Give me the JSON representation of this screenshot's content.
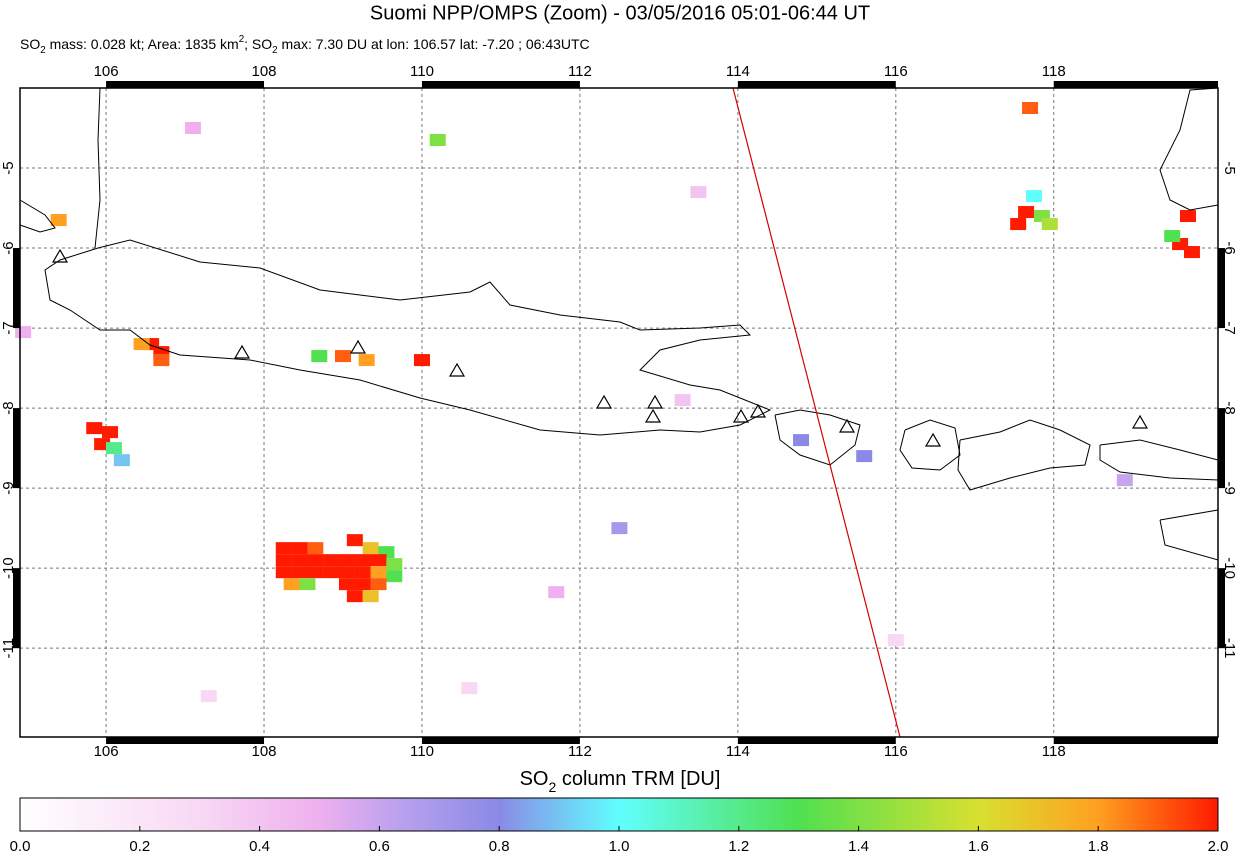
{
  "chart_data": {
    "type": "map",
    "title": "Suomi NPP/OMPS (Zoom) - 03/05/2016 05:01-06:44 UT",
    "subtitle": [
      {
        "text": "SO"
      },
      {
        "text": "2",
        "script": "sub"
      },
      {
        "text": " mass: 0.028 kt; Area: 1835 km"
      },
      {
        "text": "2",
        "script": "sup"
      },
      {
        "text": "; SO"
      },
      {
        "text": "2",
        "script": "sub"
      },
      {
        "text": " max: 7.30 DU at lon: 106.57 lat: -7.20 ; 06:43UTC"
      }
    ],
    "xlim": [
      104.91,
      120.08
    ],
    "ylim": [
      -12.11,
      -4.0
    ],
    "xticks": [
      106,
      108,
      110,
      112,
      114,
      116,
      118
    ],
    "yticks": [
      -5,
      -6,
      -7,
      -8,
      -9,
      -10,
      -11
    ],
    "grid": true,
    "cells": {
      "lon": [
        108.25,
        108.45,
        108.65,
        109.15,
        109.35,
        109.55,
        108.25,
        108.45,
        108.65,
        108.85,
        109.05,
        109.25,
        109.45,
        109.65,
        108.25,
        108.45,
        108.65,
        108.85,
        109.05,
        109.25,
        109.45,
        109.65,
        108.35,
        108.55,
        109.05,
        109.25,
        109.45,
        109.15,
        109.35,
        105.85,
        106.05,
        105.95,
        106.1,
        106.2,
        106.57,
        106.7,
        106.45,
        106.7,
        117.65,
        117.55,
        117.75,
        117.85,
        117.95,
        119.6,
        119.75,
        119.5,
        119.7,
        117.7,
        110.2,
        105.4,
        109.3,
        109.0,
        108.7,
        110.0,
        113.3,
        112.5,
        114.8,
        115.6,
        118.9,
        111.7,
        107.1,
        113.5,
        116.0,
        110.6,
        104.95,
        107.3
      ],
      "lat": [
        -9.75,
        -9.75,
        -9.75,
        -9.65,
        -9.75,
        -9.8,
        -9.9,
        -9.9,
        -9.9,
        -9.9,
        -9.9,
        -9.9,
        -9.9,
        -9.95,
        -10.05,
        -10.05,
        -10.05,
        -10.05,
        -10.05,
        -10.05,
        -10.05,
        -10.1,
        -10.2,
        -10.2,
        -10.2,
        -10.2,
        -10.2,
        -10.35,
        -10.35,
        -8.25,
        -8.3,
        -8.45,
        -8.5,
        -8.65,
        -7.2,
        -7.3,
        -7.2,
        -7.4,
        -5.55,
        -5.7,
        -5.35,
        -5.6,
        -5.7,
        -5.95,
        -6.05,
        -5.85,
        -5.6,
        -4.25,
        -4.65,
        -5.65,
        -7.4,
        -7.35,
        -7.35,
        -7.4,
        -7.9,
        -9.5,
        -8.4,
        -8.6,
        -8.9,
        -10.3,
        -4.5,
        -5.3,
        -10.9,
        -11.5,
        -7.05,
        -11.6
      ],
      "values": [
        2.3,
        2.4,
        1.9,
        2.2,
        1.7,
        1.3,
        2.5,
        2.6,
        2.4,
        2.3,
        2.5,
        2.4,
        2.0,
        1.4,
        2.2,
        2.5,
        2.1,
        2.2,
        2.6,
        2.3,
        1.8,
        1.3,
        1.8,
        1.4,
        2.3,
        2.2,
        1.9,
        2.0,
        1.7,
        2.3,
        2.2,
        2.4,
        1.2,
        0.9,
        7.3,
        2.1,
        1.8,
        1.9,
        2.2,
        2.4,
        1.0,
        1.4,
        1.5,
        2.1,
        2.2,
        1.3,
        2.0,
        1.9,
        1.4,
        1.8,
        1.8,
        1.9,
        1.3,
        2.0,
        0.4,
        0.7,
        0.8,
        0.8,
        0.6,
        0.5,
        0.5,
        0.4,
        0.3,
        0.3,
        0.5,
        0.3
      ]
    },
    "colorbar": {
      "label": [
        {
          "text": "SO"
        },
        {
          "text": "2",
          "script": "sub"
        },
        {
          "text": " column TRM [DU]"
        }
      ],
      "lim": [
        0,
        2
      ],
      "ticks": [
        {
          "value": 0,
          "label": "0.0"
        },
        {
          "value": 0.2,
          "label": "0.2"
        },
        {
          "value": 0.4,
          "label": "0.4"
        },
        {
          "value": 0.6,
          "label": "0.6"
        },
        {
          "value": 0.8,
          "label": "0.8"
        },
        {
          "value": 1,
          "label": "1.0"
        },
        {
          "value": 1.2,
          "label": "1.2"
        },
        {
          "value": 1.4,
          "label": "1.4"
        },
        {
          "value": 1.6,
          "label": "1.6"
        },
        {
          "value": 1.8,
          "label": "1.8"
        },
        {
          "value": 2,
          "label": "2.0"
        }
      ]
    }
  }
}
